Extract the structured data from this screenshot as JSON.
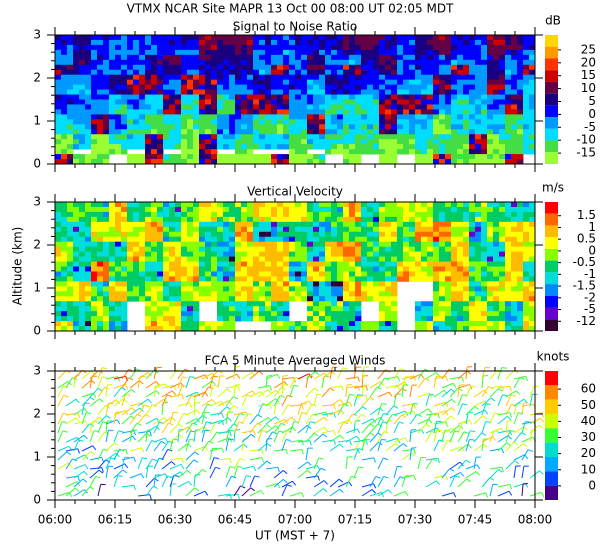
{
  "title": "VTMX  NCAR Site  MAPR 13 Oct 00  08:00 UT  02:05  MDT",
  "y_label": "Altitude (km)",
  "x_label": "UT  (MST + 7)",
  "x_tick_labels": [
    "06:00",
    "06:15",
    "06:30",
    "06:45",
    "07:00",
    "07:15",
    "07:30",
    "07:45",
    "08:00"
  ],
  "ylim": [
    0,
    3
  ],
  "yticks": [
    0,
    1,
    2,
    3
  ],
  "panels": [
    {
      "type": "field",
      "title": "Signal to Noise Ratio",
      "unit": "dB",
      "colorbar_ticks": [
        25,
        20,
        15,
        10,
        5,
        0,
        -5,
        -10,
        -15
      ],
      "colors": [
        "#ffd700",
        "#ff9900",
        "#ff3300",
        "#cc0000",
        "#660044",
        "#1a0080",
        "#0000ff",
        "#0099ff",
        "#00ddff",
        "#44dd44",
        "#99ff33"
      ]
    },
    {
      "type": "field",
      "title": "Vertical Velocity",
      "unit": "m/s",
      "colorbar_ticks": [
        1.5,
        1,
        0.5,
        0,
        -0.5,
        -1,
        -1.5,
        -2,
        -5,
        -12
      ],
      "colors": [
        "#ff0000",
        "#ff6600",
        "#ffbb00",
        "#ffff00",
        "#88ff00",
        "#00cc66",
        "#00dddd",
        "#0088ff",
        "#0000ff",
        "#6600cc",
        "#330033"
      ]
    },
    {
      "type": "barbs",
      "title": "FCA 5 Minute Averaged Winds",
      "unit": "knots",
      "colorbar_ticks": [
        60,
        50,
        40,
        30,
        20,
        10,
        0
      ],
      "colors": [
        "#ff0000",
        "#ff8800",
        "#ffcc00",
        "#ccff00",
        "#33ff33",
        "#00ddcc",
        "#00aaff",
        "#0044ff",
        "#440088"
      ]
    }
  ]
}
